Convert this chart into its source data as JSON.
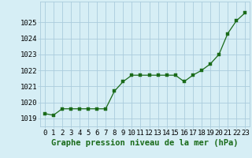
{
  "x": [
    0,
    1,
    2,
    3,
    4,
    5,
    6,
    7,
    8,
    9,
    10,
    11,
    12,
    13,
    14,
    15,
    16,
    17,
    18,
    19,
    20,
    21,
    22,
    23
  ],
  "y": [
    1019.3,
    1019.2,
    1019.6,
    1019.6,
    1019.6,
    1019.6,
    1019.6,
    1019.6,
    1020.7,
    1021.3,
    1021.7,
    1021.7,
    1021.7,
    1021.7,
    1021.7,
    1021.7,
    1021.3,
    1021.7,
    1022.0,
    1022.4,
    1023.0,
    1024.3,
    1025.1,
    1025.6
  ],
  "line_color": "#1a6b1a",
  "marker": "s",
  "marker_size": 2.2,
  "bg_color": "#d6eef5",
  "grid_color": "#aaccdd",
  "xlabel": "Graphe pression niveau de la mer (hPa)",
  "xlabel_fontsize": 7.5,
  "ylabel_ticks": [
    1019,
    1020,
    1021,
    1022,
    1023,
    1024,
    1025
  ],
  "ylim": [
    1018.5,
    1026.3
  ],
  "xlim": [
    -0.5,
    23.5
  ],
  "tick_fontsize": 6.5
}
